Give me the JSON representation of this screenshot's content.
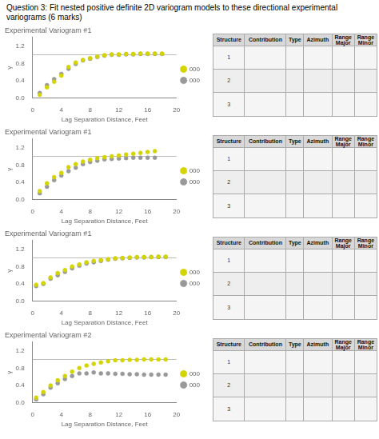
{
  "title": [
    "Question 3: Fit nested positive definite 2D variogram models to these directional experimental",
    "variograms (6 marks)"
  ],
  "chart_data": [
    {
      "type": "scatter",
      "title": "Experimental Variogram #1",
      "xlabel": "Lag Separation Distance, Feet",
      "ylabel": "γ",
      "xlim": [
        0,
        20
      ],
      "ylim": [
        0,
        1.4
      ],
      "xticks": [
        0,
        4,
        8,
        12,
        16,
        20
      ],
      "yticks": [
        {
          "value": 0,
          "label": "0.0"
        },
        0.4,
        0.8,
        1.2
      ],
      "grid": false,
      "legend": "right",
      "reference_line": {
        "value": 1.0,
        "color": "#bbbbbb"
      },
      "x": [
        1,
        2,
        3,
        4,
        5,
        6,
        7,
        8,
        9,
        10,
        11,
        12,
        13,
        14,
        15,
        16,
        17,
        18
      ],
      "series": [
        {
          "name": "000",
          "color": "#d4d400",
          "values": [
            0.08,
            0.25,
            0.38,
            0.52,
            0.72,
            0.82,
            0.88,
            0.92,
            0.96,
            0.99,
            1.01,
            1.01,
            1.02,
            1.02,
            1.03,
            1.03,
            1.03,
            1.03
          ]
        },
        {
          "name": "000",
          "color": "#999999",
          "values": [
            0.12,
            0.3,
            0.44,
            0.56,
            0.68,
            0.79,
            0.87,
            0.91,
            0.95,
            0.98,
            1.0,
            1.0,
            1.01,
            1.01,
            1.02,
            1.02,
            1.02,
            1.02
          ]
        }
      ],
      "table_headers": [
        "Structure",
        "Contribution",
        "Type",
        "Azimuth",
        "Range\nMajor",
        "Range\nMinor"
      ],
      "table_rows": [
        "1",
        "2",
        "3"
      ]
    },
    {
      "type": "scatter",
      "title": "Experimental Variogram #1",
      "xlabel": "Lag Separation Distance, Feet",
      "ylabel": "γ",
      "xlim": [
        0,
        20
      ],
      "ylim": [
        0,
        1.4
      ],
      "xticks": [
        0,
        4,
        8,
        12,
        16,
        20
      ],
      "yticks": [
        {
          "value": 0,
          "label": "0.0"
        },
        0.4,
        0.8,
        1.2
      ],
      "grid": false,
      "legend": "right",
      "reference_line": {
        "value": 1.0,
        "color": "#bbbbbb"
      },
      "x": [
        1,
        2,
        3,
        4,
        5,
        6,
        7,
        8,
        9,
        10,
        11,
        12,
        13,
        14,
        15,
        16,
        17
      ],
      "series": [
        {
          "name": "000",
          "color": "#d4d400",
          "values": [
            0.2,
            0.38,
            0.52,
            0.62,
            0.75,
            0.82,
            0.88,
            0.92,
            0.96,
            0.98,
            1.0,
            1.02,
            1.04,
            1.06,
            1.08,
            1.1,
            1.12
          ]
        },
        {
          "name": "000",
          "color": "#999999",
          "values": [
            0.15,
            0.3,
            0.45,
            0.56,
            0.66,
            0.74,
            0.82,
            0.87,
            0.9,
            0.93,
            0.94,
            0.95,
            0.96,
            0.97,
            0.97,
            0.97,
            0.97
          ]
        }
      ],
      "table_headers": [
        "Structure",
        "Contribution",
        "Type",
        "Azimuth",
        "Range\nMajor",
        "Range\nMinor"
      ],
      "table_rows": [
        "1",
        "2",
        "3"
      ]
    },
    {
      "type": "scatter",
      "title": "Experimental Variogram #1",
      "xlabel": "Lag Separation Distance, Feet",
      "ylabel": "γ",
      "xlim": [
        0,
        20
      ],
      "ylim": [
        0,
        1.4
      ],
      "xticks": [
        0,
        4,
        8,
        12,
        16,
        20
      ],
      "yticks": [
        {
          "value": 0,
          "label": "0.0"
        },
        0.4,
        0.8,
        1.2
      ],
      "grid": false,
      "legend": "right",
      "reference_line": {
        "value": 1.0,
        "color": "#bbbbbb"
      },
      "x": [
        0.5,
        1.5,
        2.5,
        3.5,
        4.5,
        5.5,
        6.5,
        7.5,
        8.5,
        9.5,
        10.5,
        11.5,
        12.5,
        13.5,
        14.5,
        15.5,
        16.5,
        17.5,
        18.5
      ],
      "series": [
        {
          "name": "000",
          "color": "#d4d400",
          "values": [
            0.38,
            0.42,
            0.55,
            0.65,
            0.72,
            0.8,
            0.85,
            0.9,
            0.93,
            0.95,
            0.97,
            0.99,
            1.0,
            1.01,
            1.02,
            1.02,
            1.02,
            1.03,
            1.03
          ]
        },
        {
          "name": "000",
          "color": "#999999",
          "values": [
            0.35,
            0.4,
            0.52,
            0.6,
            0.68,
            0.76,
            0.82,
            0.87,
            0.9,
            0.93,
            0.96,
            0.98,
            0.99,
            1.0,
            1.01,
            1.01,
            1.02,
            1.02,
            1.02
          ]
        }
      ],
      "table_headers": [
        "Structure",
        "Contribution",
        "Type",
        "Azimuth",
        "Range\nMajor",
        "Range\nMinor"
      ],
      "table_rows": [
        "1",
        "2",
        "3"
      ]
    },
    {
      "type": "scatter",
      "title": "Experimental Variogram #2",
      "xlabel": "Lag Separation Distance, Feet",
      "ylabel": "γ",
      "xlim": [
        0,
        20
      ],
      "ylim": [
        0,
        1.4
      ],
      "xticks": [
        0,
        4,
        8,
        12,
        16,
        20
      ],
      "yticks": [
        {
          "value": 0,
          "label": "0.0"
        },
        0.4,
        0.8,
        1.2
      ],
      "grid": false,
      "legend": "right",
      "reference_line": {
        "value": 1.0,
        "color": "#bbbbbb"
      },
      "x": [
        0.5,
        1.5,
        2.5,
        3.5,
        4.5,
        5.5,
        6.5,
        7.5,
        8.5,
        9.5,
        10.5,
        11.5,
        12.5,
        13.5,
        14.5,
        15.5,
        16.5,
        17.5,
        18.5
      ],
      "series": [
        {
          "name": "000",
          "color": "#d4d400",
          "values": [
            0.12,
            0.25,
            0.4,
            0.52,
            0.62,
            0.72,
            0.8,
            0.86,
            0.9,
            0.93,
            0.96,
            0.98,
            0.98,
            0.99,
            0.99,
            1.0,
            1.0,
            1.0,
            1.0
          ]
        },
        {
          "name": "000",
          "color": "#999999",
          "values": [
            0.08,
            0.2,
            0.35,
            0.45,
            0.55,
            0.62,
            0.68,
            0.68,
            0.7,
            0.68,
            0.68,
            0.67,
            0.67,
            0.66,
            0.66,
            0.65,
            0.65,
            0.65,
            0.65
          ]
        }
      ],
      "table_headers": [
        "Structure",
        "Contribution",
        "Type",
        "Azimuth",
        "Range\nMajor",
        "Range\nMinor"
      ],
      "table_rows": [
        "1",
        "2",
        "3"
      ]
    }
  ]
}
